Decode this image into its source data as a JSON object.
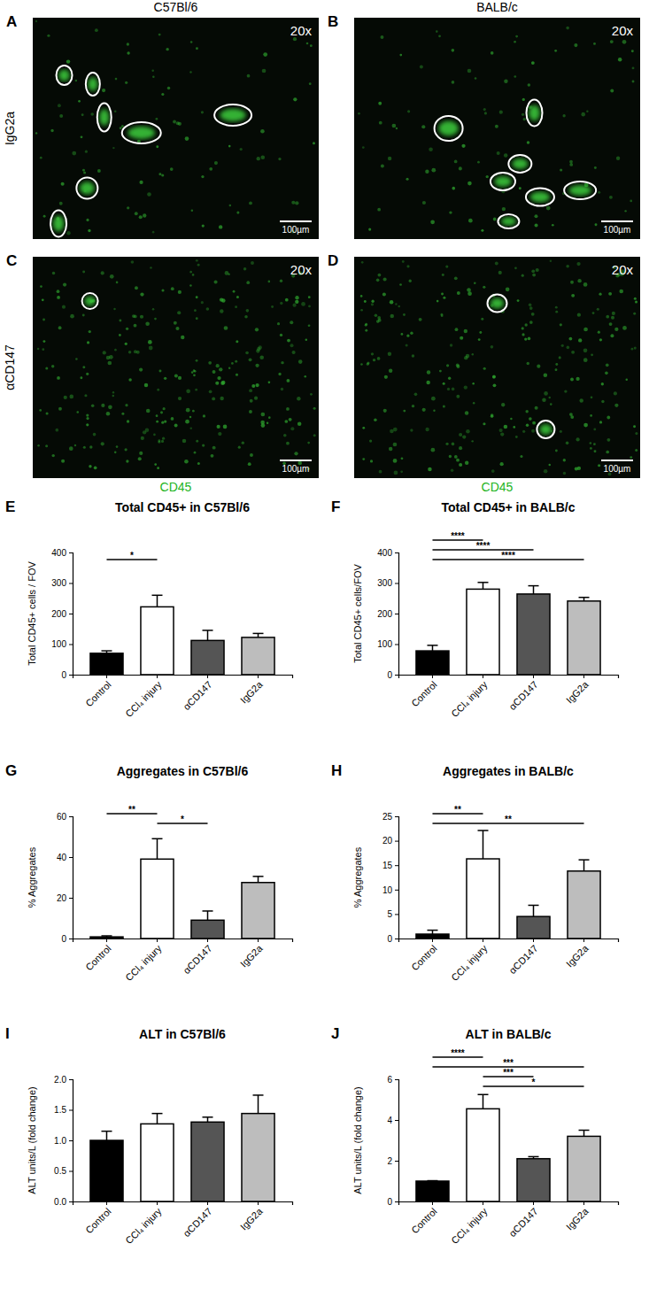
{
  "figure": {
    "columns": [
      "C57Bl/6",
      "BALB/c"
    ],
    "rows": [
      "IgG2a",
      "αCD147"
    ],
    "stain": "CD45",
    "panels": [
      {
        "label": "A",
        "magnification": "20x",
        "scale_bar": "100µm"
      },
      {
        "label": "B",
        "magnification": "20x",
        "scale_bar": "100µm"
      },
      {
        "label": "C",
        "magnification": "20x",
        "scale_bar": "100µm"
      },
      {
        "label": "D",
        "magnification": "20x",
        "scale_bar": "100µm"
      }
    ]
  },
  "chart_data": [
    {
      "type": "bar",
      "panel": "E",
      "title": "Total CD45+ in C57Bl/6",
      "y_label": "Total CD45+ cells / FOV",
      "categories": [
        "Control",
        "CCl₄ injury",
        "αCD147",
        "IgG2a"
      ],
      "values": [
        70,
        222,
        112,
        122
      ],
      "errors": [
        8,
        38,
        33,
        13
      ],
      "colors": [
        "#000000",
        "#ffffff",
        "#555555",
        "#bdbdbd"
      ],
      "ylim": [
        0,
        400
      ],
      "yticks": [
        0,
        100,
        200,
        300,
        400
      ],
      "annotations": [
        {
          "from": 0,
          "to": 1,
          "label": "*"
        }
      ]
    },
    {
      "type": "bar",
      "panel": "F",
      "title": "Total CD45+ in BALB/c",
      "y_label": "Total CD45+ cells/FOV",
      "categories": [
        "Control",
        "CCl₄ injury",
        "αCD147",
        "IgG2a"
      ],
      "values": [
        78,
        280,
        264,
        241
      ],
      "errors": [
        18,
        22,
        27,
        12
      ],
      "colors": [
        "#000000",
        "#ffffff",
        "#555555",
        "#bdbdbd"
      ],
      "ylim": [
        0,
        400
      ],
      "yticks": [
        0,
        100,
        200,
        300,
        400
      ],
      "annotations": [
        {
          "from": 0,
          "to": 1,
          "label": "****"
        },
        {
          "from": 0,
          "to": 2,
          "label": "****"
        },
        {
          "from": 0,
          "to": 3,
          "label": "****"
        }
      ]
    },
    {
      "type": "bar",
      "panel": "G",
      "title": "Aggregates in C57Bl/6",
      "y_label": "% Aggregates",
      "categories": [
        "Control",
        "CCl₄ injury",
        "αCD147",
        "IgG2a"
      ],
      "values": [
        0.8,
        39,
        9,
        27.5
      ],
      "errors": [
        0.5,
        10,
        4.5,
        3
      ],
      "colors": [
        "#000000",
        "#ffffff",
        "#555555",
        "#bdbdbd"
      ],
      "ylim": [
        0,
        60
      ],
      "yticks": [
        0,
        20,
        40,
        60
      ],
      "annotations": [
        {
          "from": 0,
          "to": 1,
          "label": "**"
        },
        {
          "from": 1,
          "to": 2,
          "label": "*"
        }
      ]
    },
    {
      "type": "bar",
      "panel": "H",
      "title": "Aggregates in BALB/c",
      "y_label": "% Aggregates",
      "categories": [
        "Control",
        "CCl₄ injury",
        "αCD147",
        "IgG2a"
      ],
      "values": [
        0.9,
        16.3,
        4.5,
        13.8
      ],
      "errors": [
        0.8,
        5.8,
        2.3,
        2.3
      ],
      "colors": [
        "#000000",
        "#ffffff",
        "#555555",
        "#bdbdbd"
      ],
      "ylim": [
        0,
        25
      ],
      "yticks": [
        0,
        5,
        10,
        15,
        20,
        25
      ],
      "annotations": [
        {
          "from": 0,
          "to": 1,
          "label": "**"
        },
        {
          "from": 0,
          "to": 3,
          "label": "**"
        }
      ]
    },
    {
      "type": "bar",
      "panel": "I",
      "title": "ALT in C57Bl/6",
      "y_label": "ALT units/L (fold change)",
      "categories": [
        "Control",
        "CCl₄ injury",
        "αCD147",
        "IgG2a"
      ],
      "values": [
        1.0,
        1.27,
        1.3,
        1.44
      ],
      "errors": [
        0.15,
        0.17,
        0.08,
        0.3
      ],
      "colors": [
        "#000000",
        "#ffffff",
        "#555555",
        "#bdbdbd"
      ],
      "ylim": [
        0,
        2
      ],
      "yticks": [
        {
          "value": 0,
          "label": "0.0"
        },
        0.5,
        {
          "value": 1,
          "label": "1.0"
        },
        1.5,
        {
          "value": 2,
          "label": "2.0"
        }
      ],
      "annotations": []
    },
    {
      "type": "bar",
      "panel": "J",
      "title": "ALT in BALB/c",
      "y_label": "ALT units/L (fold change)",
      "categories": [
        "Control",
        "CCl₄ injury",
        "αCD147",
        "IgG2a"
      ],
      "values": [
        1.0,
        4.55,
        2.1,
        3.2
      ],
      "errors": [
        0.02,
        0.7,
        0.1,
        0.3
      ],
      "colors": [
        "#000000",
        "#ffffff",
        "#555555",
        "#bdbdbd"
      ],
      "ylim": [
        0,
        6
      ],
      "yticks": [
        0,
        2,
        4,
        6
      ],
      "annotations": [
        {
          "from": 0,
          "to": 1,
          "label": "****"
        },
        {
          "from": 0,
          "to": 3,
          "label": "***"
        },
        {
          "from": 1,
          "to": 2,
          "label": "***"
        },
        {
          "from": 1,
          "to": 3,
          "label": "*"
        }
      ]
    }
  ]
}
